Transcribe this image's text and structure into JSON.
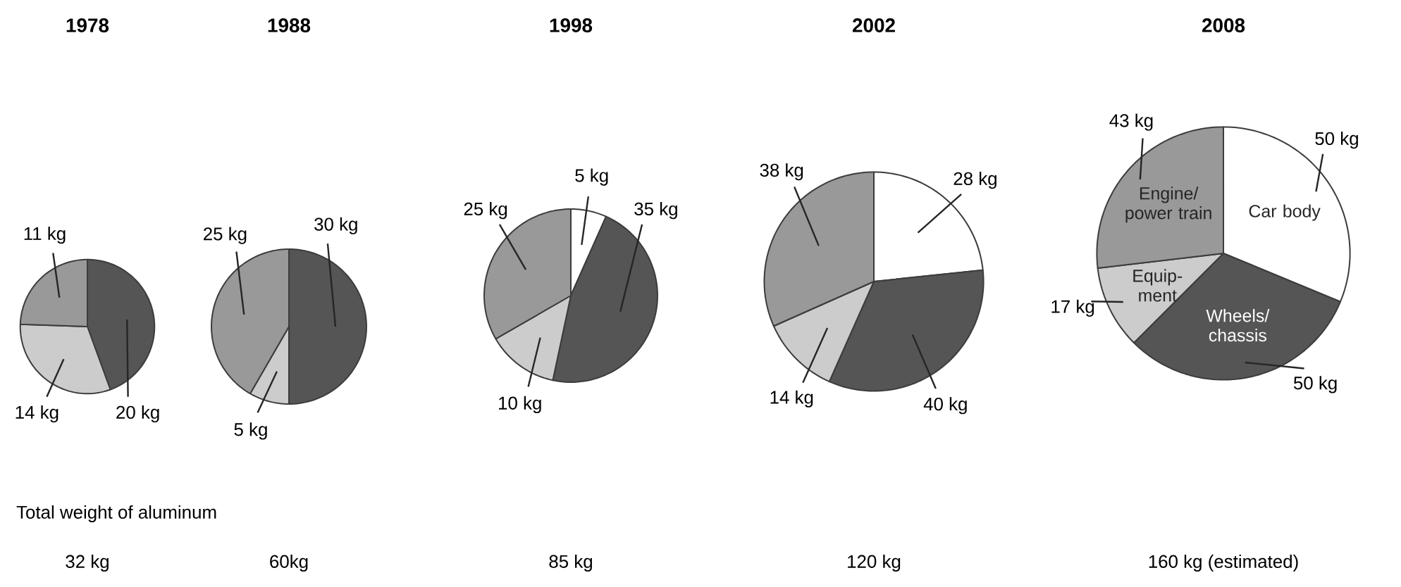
{
  "chart_data": [
    {
      "type": "pie",
      "title": "1978",
      "categories": [
        null,
        null,
        null,
        null
      ],
      "values": [
        null,
        20,
        14,
        11
      ],
      "colors": [
        "#ffffff",
        "#555555",
        "#cccccc",
        "#999999"
      ],
      "value_labels": [
        null,
        "20 kg",
        "14 kg",
        "11 kg"
      ],
      "annotations": [
        "Total weight of aluminum",
        "32 kg"
      ]
    },
    {
      "type": "pie",
      "title": "1988",
      "categories": [
        null,
        null,
        null,
        null
      ],
      "values": [
        null,
        30,
        5,
        25
      ],
      "colors": [
        "#ffffff",
        "#555555",
        "#cccccc",
        "#999999"
      ],
      "value_labels": [
        null,
        "30 kg",
        "5 kg",
        "25 kg"
      ],
      "annotations": [
        "60kg"
      ]
    },
    {
      "type": "pie",
      "title": "1998",
      "categories": [
        null,
        null,
        null,
        null
      ],
      "values": [
        5,
        35,
        10,
        25
      ],
      "colors": [
        "#ffffff",
        "#555555",
        "#cccccc",
        "#999999"
      ],
      "value_labels": [
        "5 kg",
        "35 kg",
        "10 kg",
        "25 kg"
      ],
      "annotations": [
        "85 kg"
      ]
    },
    {
      "type": "pie",
      "title": "2002",
      "categories": [
        null,
        null,
        null,
        null
      ],
      "values": [
        28,
        40,
        14,
        38
      ],
      "colors": [
        "#ffffff",
        "#555555",
        "#cccccc",
        "#999999"
      ],
      "value_labels": [
        "28 kg",
        "40 kg",
        "14 kg",
        "38 kg"
      ],
      "annotations": [
        "120 kg"
      ]
    },
    {
      "type": "pie",
      "title": "2008",
      "categories": [
        "Car body",
        "Wheels/ chassis",
        "Equip- ment",
        "Engine/ power train"
      ],
      "values": [
        50,
        50,
        17,
        43
      ],
      "colors": [
        "#ffffff",
        "#555555",
        "#cccccc",
        "#999999"
      ],
      "value_labels": [
        "50 kg",
        "50 kg",
        "17 kg",
        "43 kg"
      ],
      "annotations": [
        "160 kg (estimated)"
      ]
    }
  ]
}
